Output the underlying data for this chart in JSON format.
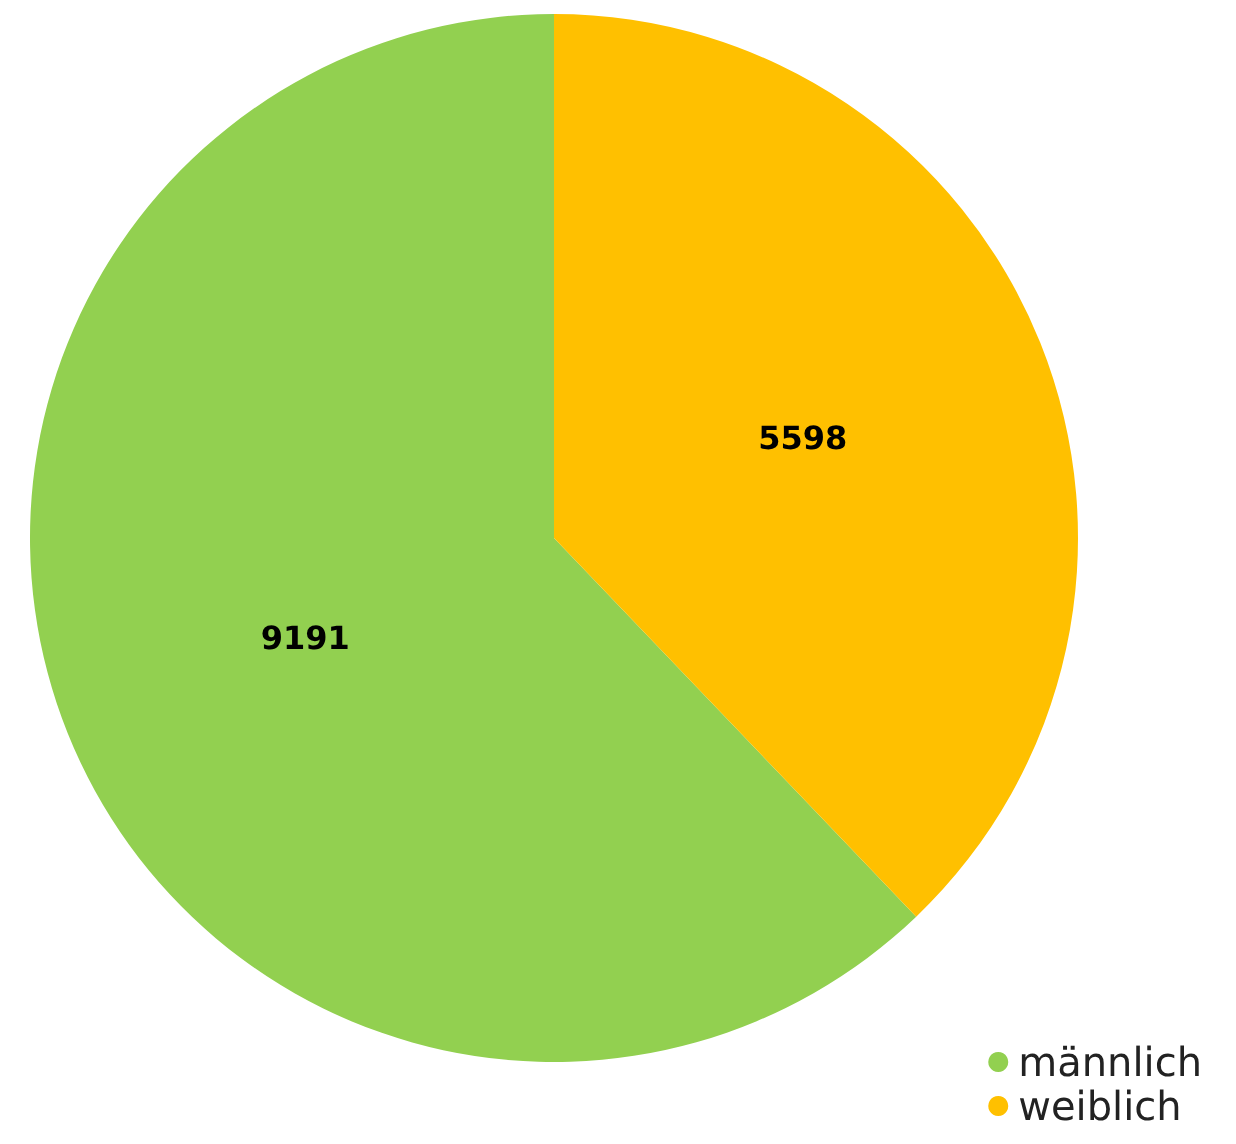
{
  "chart_data": {
    "type": "pie",
    "categories": [
      "männlich",
      "weiblich"
    ],
    "values": [
      9191,
      5598
    ],
    "colors": [
      "#92d050",
      "#ffc000"
    ],
    "data_labels": true,
    "legend": "bottom right"
  }
}
